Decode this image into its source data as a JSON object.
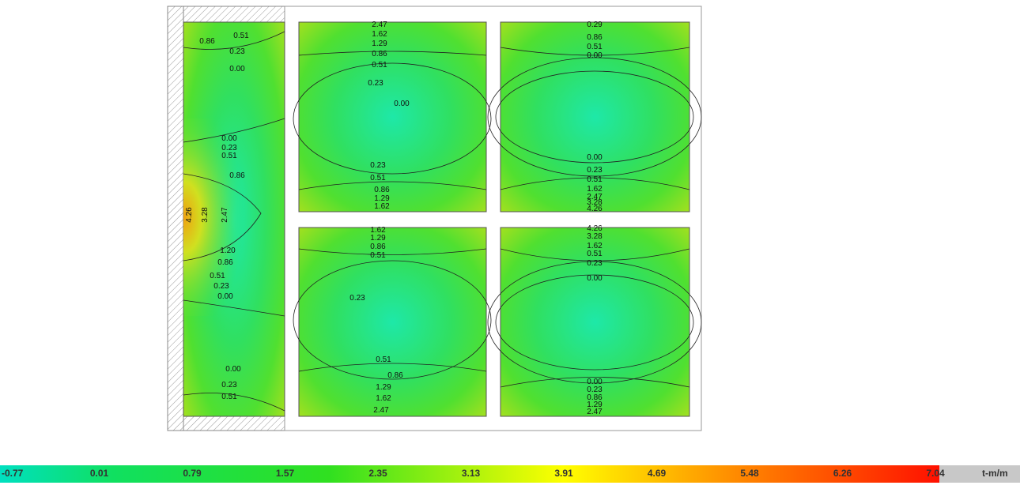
{
  "legend": {
    "ticks": [
      "-0.77",
      "0.01",
      "0.79",
      "1.57",
      "2.35",
      "3.13",
      "3.91",
      "4.69",
      "5.48",
      "6.26",
      "7.04"
    ],
    "unit": "t-m/m"
  },
  "panels": [
    {
      "labels": [
        "0.86",
        "0.51",
        "0.23",
        "0.00",
        "0.00",
        "0.23",
        "0.51",
        "0.86",
        "4.26",
        "3.28",
        "2.47",
        "1.20",
        "0.86",
        "0.51",
        "0.23",
        "0.00",
        "0.00",
        "0.23",
        "0.51"
      ]
    },
    {
      "labels": [
        "2.47",
        "1.62",
        "1.29",
        "0.86",
        "0.51",
        "0.23",
        "0.00",
        "0.23",
        "0.51",
        "0.86",
        "1.29",
        "1.62"
      ]
    },
    {
      "labels": [
        "0.29",
        "0.86",
        "0.51",
        "0.00",
        "0.00",
        "0.23",
        "0.51",
        "1.62",
        "2.47",
        "3.28",
        "4.26"
      ]
    },
    {
      "labels": [
        "1.62",
        "1.29",
        "0.86",
        "0.51",
        "0.23",
        "0.51",
        "0.86",
        "1.29",
        "1.62",
        "2.47"
      ]
    },
    {
      "labels": [
        "4.26",
        "3.28",
        "1.62",
        "0.51",
        "0.23",
        "0.00",
        "0.00",
        "0.23",
        "0.86",
        "1.29",
        "2.47"
      ]
    }
  ]
}
